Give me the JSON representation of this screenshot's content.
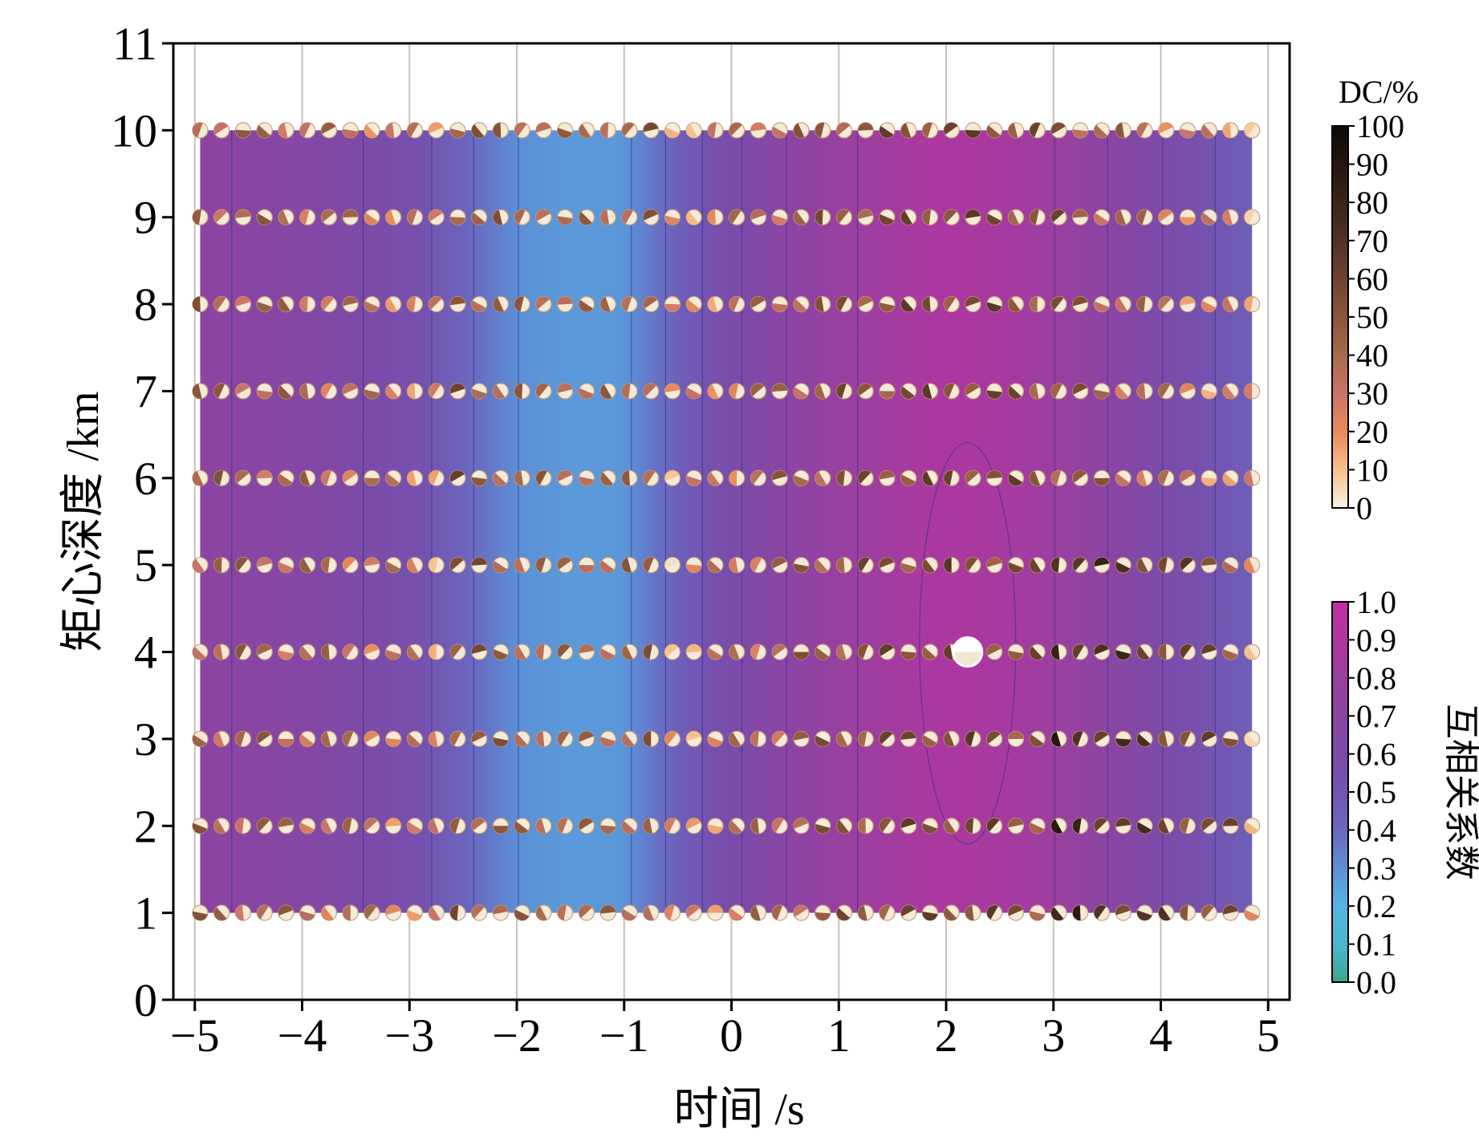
{
  "chart_data": {
    "type": "heatmap",
    "xlabel": "时间 /s",
    "ylabel": "矩心深度 /km",
    "xlim": [
      -5.2,
      5.2
    ],
    "ylim": [
      0,
      11
    ],
    "xticks": [
      "−5",
      "−4",
      "−3",
      "−2",
      "−1",
      "0",
      "1",
      "2",
      "3",
      "4",
      "5"
    ],
    "yticks": [
      "0",
      "1",
      "2",
      "3",
      "4",
      "5",
      "6",
      "7",
      "8",
      "9",
      "10",
      "11"
    ],
    "grid": "vertical lines",
    "x_grid_range": [
      -4.95,
      4.85
    ],
    "x_step": 0.2,
    "depths": [
      1,
      2,
      3,
      4,
      5,
      6,
      7,
      8,
      9,
      10
    ],
    "correlation_profile": {
      "description_values_by_time": true,
      "time": [
        -5,
        -4,
        -3,
        -2.5,
        -2,
        -1.5,
        -1,
        -0.5,
        0,
        0.5,
        1,
        1.5,
        2,
        2.5,
        3,
        3.5,
        4,
        4.5,
        5
      ],
      "value": [
        0.72,
        0.66,
        0.55,
        0.42,
        0.3,
        0.27,
        0.28,
        0.44,
        0.58,
        0.7,
        0.78,
        0.84,
        0.88,
        0.86,
        0.8,
        0.7,
        0.6,
        0.5,
        0.42
      ]
    },
    "best_solution": {
      "time": 2.2,
      "depth": 4,
      "correlation": 0.9
    },
    "dc_colorbar": {
      "label": "DC/%",
      "range": [
        0,
        100
      ],
      "ticks": [
        "0",
        "10",
        "20",
        "30",
        "40",
        "50",
        "60",
        "70",
        "80",
        "90",
        "100"
      ],
      "colors": [
        "#f8f0e6",
        "#f6c08a",
        "#e98b5a",
        "#c9746a",
        "#a86a4e",
        "#8a553b",
        "#6e4330",
        "#513224",
        "#3a2418",
        "#24160f",
        "#0d0805"
      ]
    },
    "cc_colorbar": {
      "label": "互相关系数",
      "range": [
        0,
        1
      ],
      "ticks": [
        "0.0",
        "0.1",
        "0.2",
        "0.3",
        "0.4",
        "0.5",
        "0.6",
        "0.7",
        "0.8",
        "0.9",
        "1.0"
      ],
      "colors": [
        "#3fa58f",
        "#4ab7d0",
        "#55b5e3",
        "#5d8fd6",
        "#6a68bf",
        "#7354b1",
        "#7d4aa8",
        "#8a45a3",
        "#9b3fa0",
        "#b036a0",
        "#c22ea5"
      ]
    }
  }
}
